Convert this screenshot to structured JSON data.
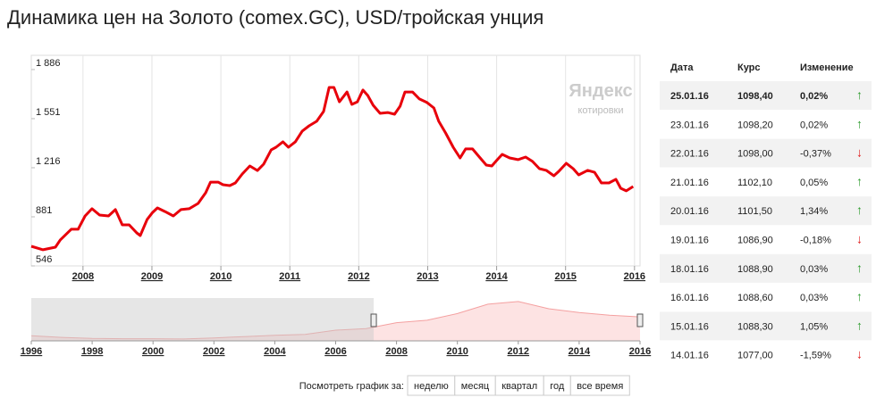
{
  "title": "Динамика цен на Золото (comex.GC), USD/тройская унция",
  "watermark": {
    "brand": "Яндекс",
    "caption": "котировки"
  },
  "chart_data": [
    {
      "type": "line",
      "color": "#e8000b",
      "x": [
        2007.25,
        2007.42,
        2007.6,
        2007.67,
        2007.83,
        2007.93,
        2008.03,
        2008.13,
        2008.24,
        2008.37,
        2008.47,
        2008.57,
        2008.67,
        2008.78,
        2008.83,
        2008.93,
        2009.01,
        2009.08,
        2009.19,
        2009.31,
        2009.42,
        2009.54,
        2009.67,
        2009.78,
        2009.85,
        2009.96,
        2010.03,
        2010.13,
        2010.21,
        2010.31,
        2010.42,
        2010.53,
        2010.62,
        2010.73,
        2010.8,
        2010.9,
        2010.98,
        2011.08,
        2011.18,
        2011.28,
        2011.39,
        2011.49,
        2011.57,
        2011.64,
        2011.72,
        2011.83,
        2011.9,
        2011.98,
        2012.06,
        2012.13,
        2012.21,
        2012.31,
        2012.42,
        2012.52,
        2012.6,
        2012.67,
        2012.78,
        2012.88,
        2012.99,
        2013.09,
        2013.16,
        2013.26,
        2013.37,
        2013.47,
        2013.55,
        2013.65,
        2013.75,
        2013.85,
        2013.93,
        2014.01,
        2014.08,
        2014.19,
        2014.31,
        2014.42,
        2014.52,
        2014.62,
        2014.72,
        2014.83,
        2014.9,
        2015.01,
        2015.11,
        2015.19,
        2015.32,
        2015.42,
        2015.52,
        2015.63,
        2015.73,
        2015.8,
        2015.88,
        2015.98
      ],
      "values": [
        680,
        656,
        674,
        723,
        796,
        796,
        887,
        936,
        893,
        887,
        930,
        826,
        826,
        771,
        753,
        863,
        911,
        942,
        917,
        887,
        930,
        936,
        972,
        1045,
        1118,
        1118,
        1100,
        1094,
        1112,
        1173,
        1228,
        1197,
        1240,
        1338,
        1356,
        1393,
        1356,
        1393,
        1466,
        1502,
        1533,
        1600,
        1764,
        1764,
        1666,
        1733,
        1648,
        1666,
        1746,
        1709,
        1642,
        1587,
        1593,
        1581,
        1636,
        1733,
        1733,
        1685,
        1661,
        1624,
        1533,
        1453,
        1356,
        1283,
        1344,
        1344,
        1289,
        1234,
        1228,
        1271,
        1307,
        1283,
        1271,
        1289,
        1259,
        1210,
        1198,
        1161,
        1191,
        1246,
        1210,
        1167,
        1198,
        1185,
        1112,
        1112,
        1137,
        1076,
        1058,
        1088
      ],
      "xlim": [
        2007.25,
        2016.08
      ],
      "ylim": [
        546,
        1983
      ],
      "xticks": [
        2008,
        2009,
        2010,
        2011,
        2012,
        2013,
        2014,
        2015,
        2016
      ],
      "yticks": [
        546,
        881,
        {
          "value": 1216,
          "label": "1 216"
        },
        {
          "value": 1551,
          "label": "1 551"
        },
        {
          "value": 1886,
          "label": "1 886"
        }
      ],
      "grid": true
    },
    {
      "type": "area",
      "color": "#f4a0a0",
      "fill": "#fde3e3",
      "x": [
        1996,
        1997,
        1998,
        1999,
        2000,
        2001,
        2002,
        2003,
        2004,
        2005,
        2006,
        2007,
        2008,
        2009,
        2010,
        2011,
        2012,
        2013,
        2014,
        2015,
        2016
      ],
      "values": [
        390,
        330,
        290,
        280,
        280,
        270,
        310,
        360,
        410,
        440,
        600,
        660,
        880,
        970,
        1220,
        1570,
        1670,
        1400,
        1260,
        1160,
        1098
      ],
      "xlim": [
        1996,
        2016
      ],
      "ylim": [
        200,
        1800
      ],
      "xticks": [
        1996,
        1998,
        2000,
        2002,
        2004,
        2006,
        2008,
        2010,
        2012,
        2014,
        2016
      ]
    }
  ],
  "table": {
    "header": [
      "Дата",
      "Курс",
      "Изменение"
    ],
    "rows": [
      [
        "25.01.16",
        "1098,40",
        "0,02%",
        "↑"
      ],
      [
        "23.01.16",
        "1098,20",
        "0,02%",
        "↑"
      ],
      [
        "22.01.16",
        "1098,00",
        "-0,37%",
        "↓"
      ],
      [
        "21.01.16",
        "1102,10",
        "0,05%",
        "↑"
      ],
      [
        "20.01.16",
        "1101,50",
        "1,34%",
        "↑"
      ],
      [
        "19.01.16",
        "1086,90",
        "-0,18%",
        "↓"
      ],
      [
        "18.01.16",
        "1088,90",
        "0,03%",
        "↑"
      ],
      [
        "16.01.16",
        "1088,60",
        "0,03%",
        "↑"
      ],
      [
        "15.01.16",
        "1088,30",
        "1,05%",
        "↑"
      ],
      [
        "14.01.16",
        "1077,00",
        "-1,59%",
        "↓"
      ]
    ],
    "arrow_colors": [
      "#2a9a2a",
      "#2a9a2a",
      "#e02020",
      "#2a9a2a",
      "#2a9a2a",
      "#e02020",
      "#2a9a2a",
      "#2a9a2a",
      "#2a9a2a",
      "#e02020"
    ]
  },
  "period": {
    "label": "Посмотреть график за:",
    "buttons": [
      "неделю",
      "месяц",
      "квартал",
      "год",
      "все время"
    ]
  }
}
